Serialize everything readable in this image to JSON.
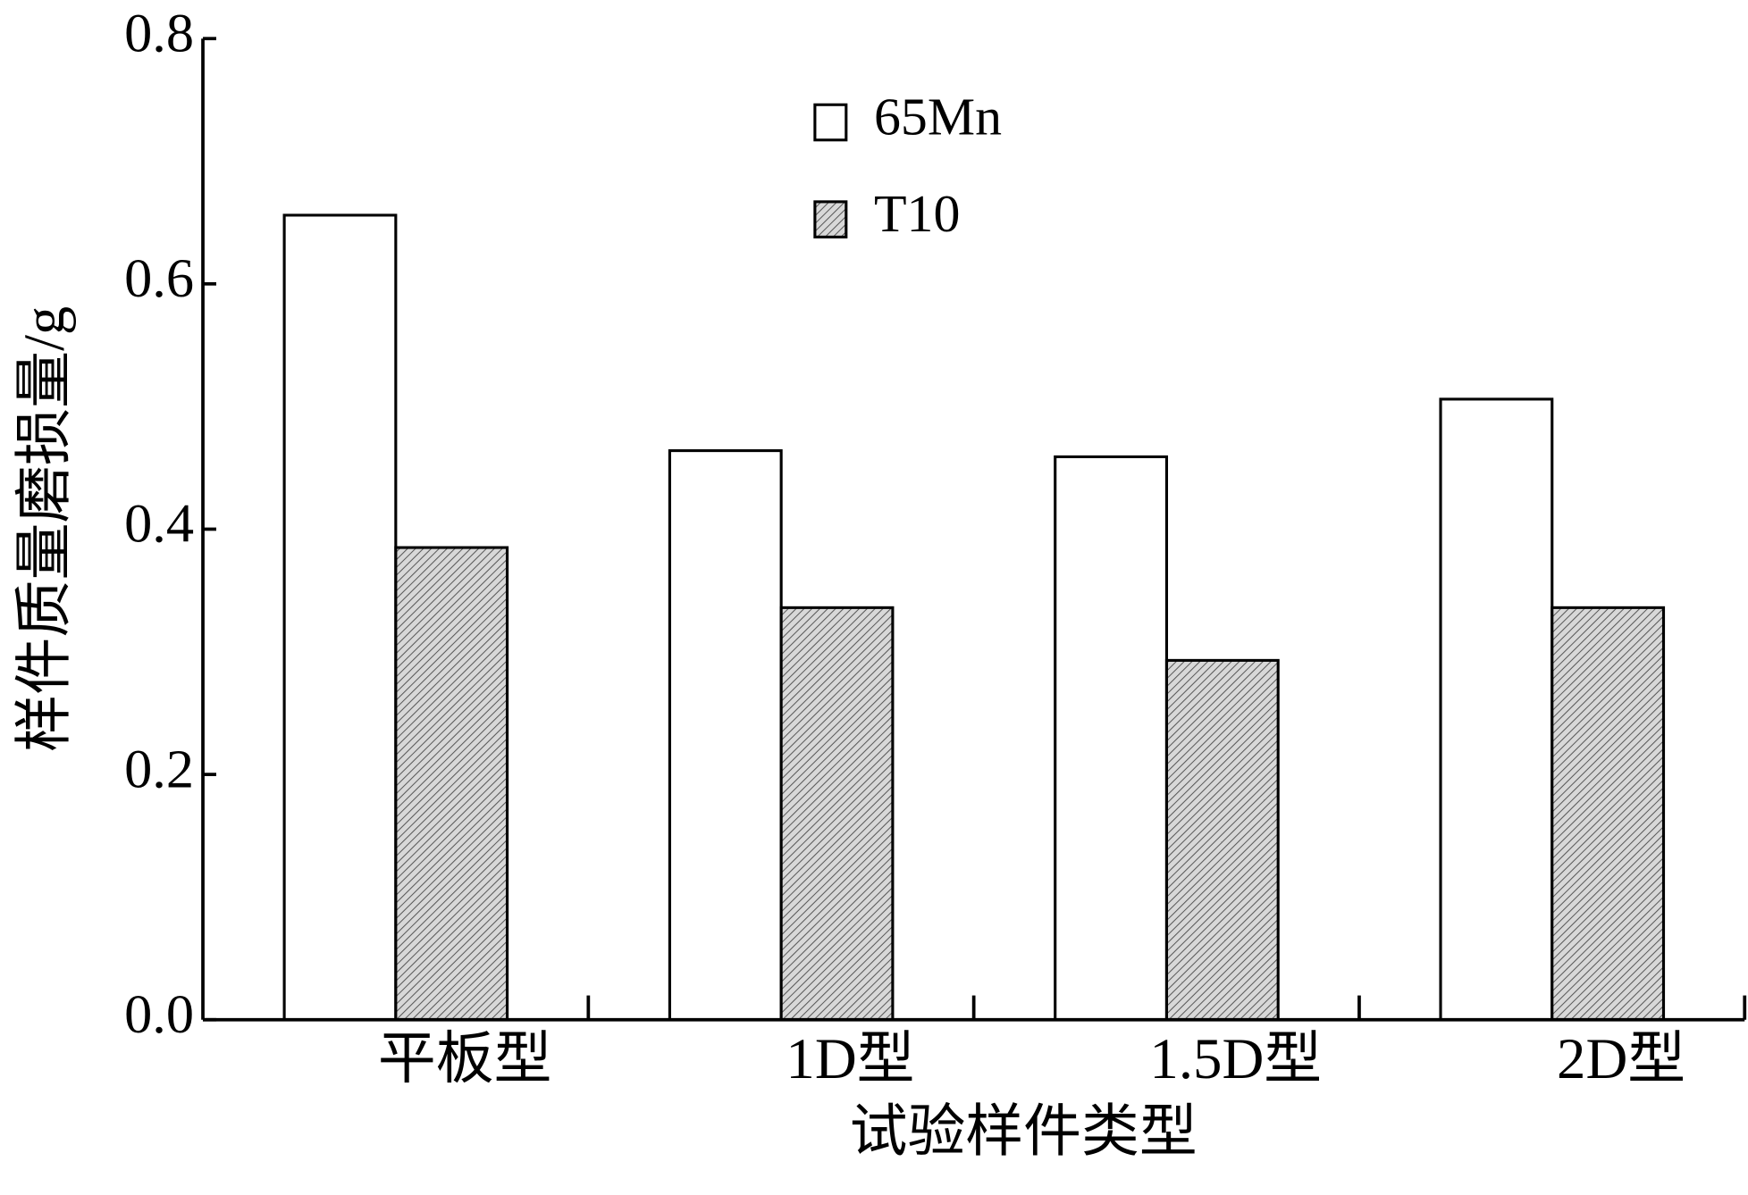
{
  "chart_data": {
    "type": "bar",
    "x_label": "试验样件类型",
    "y_label": "样件质量磨损量/g",
    "categories": [
      "平板型",
      "1D型",
      "1.5D型",
      "2D型"
    ],
    "series": [
      {
        "name": "65Mn",
        "color": "#ffffff",
        "values": [
          0.656,
          0.464,
          0.459,
          0.506
        ]
      },
      {
        "name": "T10",
        "color": "#d8d8d8",
        "values": [
          0.385,
          0.336,
          0.293,
          0.336
        ]
      }
    ],
    "ylim": [
      0,
      0.8
    ],
    "yticks": [
      {
        "value": 0,
        "label": "0.0"
      },
      {
        "value": 0.2,
        "label": "0.2"
      },
      {
        "value": 0.4,
        "label": "0.4"
      },
      {
        "value": 0.6,
        "label": "0.6"
      },
      {
        "value": 0.8,
        "label": "0.8"
      }
    ],
    "grid": false
  }
}
